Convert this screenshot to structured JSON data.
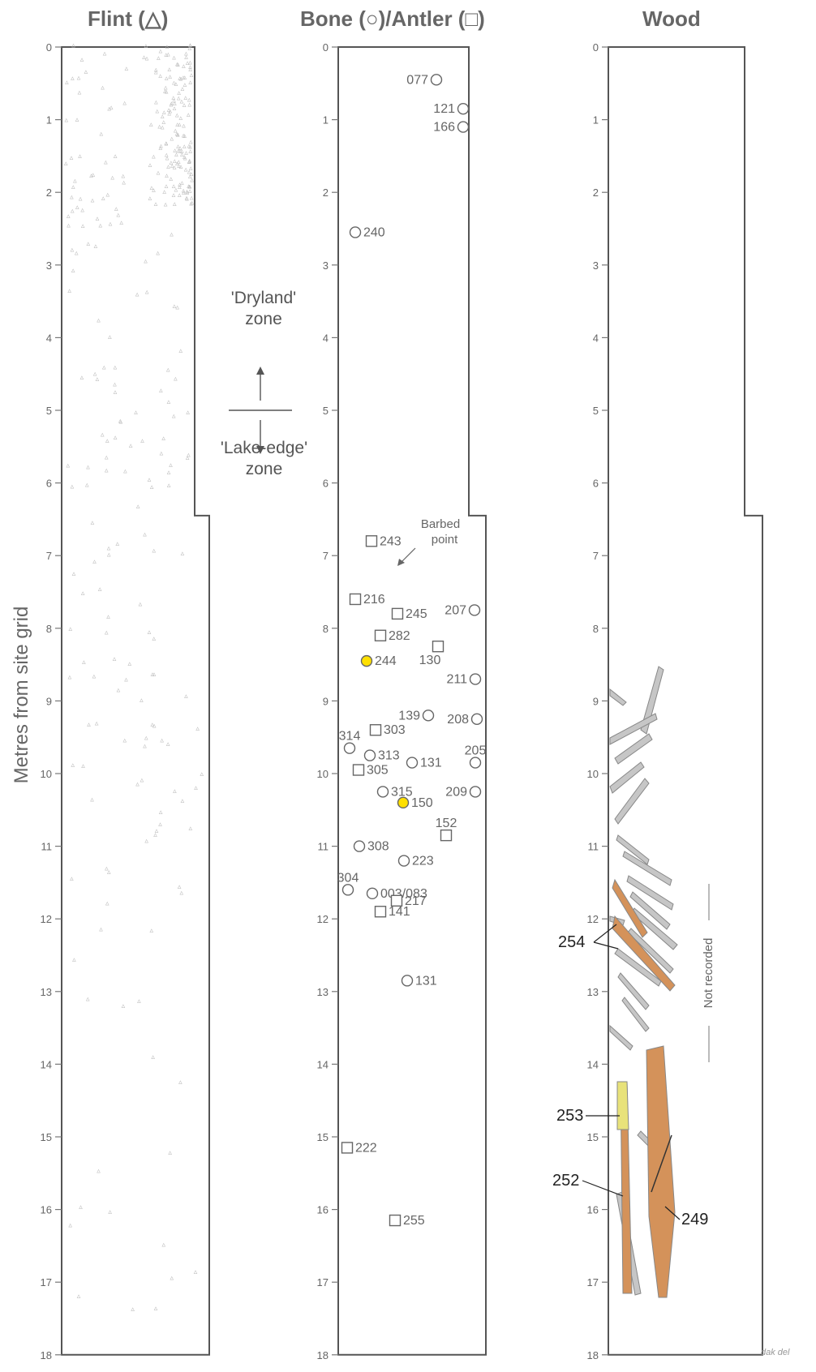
{
  "titles": {
    "flint": "Flint (△)",
    "bone_antler": "Bone (○)/Antler (□)",
    "wood": "Wood"
  },
  "y_axis_label": "Metres from site grid",
  "axis": {
    "min": 0,
    "max": 18,
    "ticks": [
      0,
      1,
      2,
      3,
      4,
      5,
      6,
      7,
      8,
      9,
      10,
      11,
      12,
      13,
      14,
      15,
      16,
      17,
      18
    ]
  },
  "zones": {
    "upper": "'Dryland'\nzone",
    "lower": "'Lake-edge'\nzone",
    "boundary_m": 5
  },
  "flint_marker": "▵",
  "bone_finds": [
    {
      "label": "077",
      "kind": "bone",
      "m": 0.45
    },
    {
      "label": "121",
      "kind": "bone",
      "m": 0.85
    },
    {
      "label": "166",
      "kind": "bone",
      "m": 1.1
    },
    {
      "label": "240",
      "kind": "bone",
      "m": 2.55
    },
    {
      "label": "243",
      "kind": "antler",
      "m": 6.8
    },
    {
      "label": "216",
      "kind": "antler",
      "m": 7.6
    },
    {
      "label": "245",
      "kind": "antler",
      "m": 7.8
    },
    {
      "label": "207",
      "kind": "bone",
      "m": 7.75
    },
    {
      "label": "282",
      "kind": "antler",
      "m": 8.1
    },
    {
      "label": "130",
      "kind": "antler",
      "m": 8.25
    },
    {
      "label": "244",
      "kind": "bone",
      "m": 8.45,
      "highlight": true
    },
    {
      "label": "211",
      "kind": "bone",
      "m": 8.7
    },
    {
      "label": "139",
      "kind": "bone",
      "m": 9.2
    },
    {
      "label": "208",
      "kind": "bone",
      "m": 9.25
    },
    {
      "label": "314",
      "kind": "bone",
      "m": 9.65
    },
    {
      "label": "303",
      "kind": "antler",
      "m": 9.4
    },
    {
      "label": "313",
      "kind": "bone",
      "m": 9.75
    },
    {
      "label": "131",
      "kind": "bone",
      "m": 9.85
    },
    {
      "label": "205",
      "kind": "bone",
      "m": 9.85
    },
    {
      "label": "305",
      "kind": "antler",
      "m": 9.95
    },
    {
      "label": "315",
      "kind": "bone",
      "m": 10.25
    },
    {
      "label": "209",
      "kind": "bone",
      "m": 10.25
    },
    {
      "label": "150",
      "kind": "bone",
      "m": 10.4,
      "highlight": true
    },
    {
      "label": "152",
      "kind": "antler",
      "m": 10.85
    },
    {
      "label": "308",
      "kind": "bone",
      "m": 11.0
    },
    {
      "label": "223",
      "kind": "bone",
      "m": 11.2
    },
    {
      "label": "304",
      "kind": "bone",
      "m": 11.6
    },
    {
      "label": "003/083",
      "kind": "bone",
      "m": 11.65
    },
    {
      "label": "217",
      "kind": "antler",
      "m": 11.75
    },
    {
      "label": "141",
      "kind": "antler",
      "m": 11.9
    },
    {
      "label": "131",
      "kind": "bone",
      "m": 12.85
    },
    {
      "label": "222",
      "kind": "antler",
      "m": 15.15
    },
    {
      "label": "255",
      "kind": "antler",
      "m": 16.15
    }
  ],
  "barbed_point": "Barbed\npoint",
  "wood_labels": {
    "w254": "254",
    "w253": "253",
    "w252": "252",
    "w249": "249"
  },
  "not_recorded": "Not recorded",
  "credit": "dak del",
  "colors": {
    "wood_worked": "#d4925a",
    "wood_grey": "#c6c6c6",
    "highlight": "#ffe000",
    "flint_point": "#b8b8b8"
  }
}
